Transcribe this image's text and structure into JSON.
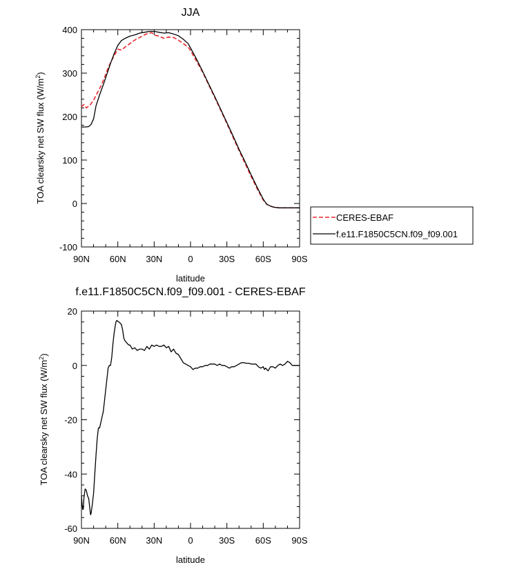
{
  "chart_data": [
    {
      "type": "line",
      "title": "JJA",
      "xlabel": "latitude",
      "ylabel": "TOA clearsky net SW flux (W/m²)",
      "ylabel_parts": {
        "main": "TOA clearsky net SW flux (W/m",
        "sup": "2",
        "end": ")"
      },
      "xlim": [
        90,
        -90
      ],
      "ylim": [
        -100,
        400
      ],
      "xticks": [
        90,
        60,
        30,
        0,
        -30,
        -60,
        -90
      ],
      "xtick_labels": [
        "90N",
        "60N",
        "30N",
        "0",
        "30S",
        "60S",
        "90S"
      ],
      "yticks": [
        -100,
        0,
        100,
        200,
        300,
        400
      ],
      "ytick_labels": [
        "-100",
        "0",
        "100",
        "200",
        "300",
        "400"
      ],
      "legend_position": "right",
      "series": [
        {
          "name": "CERES-EBAF",
          "color": "#e8282e",
          "dash": true,
          "x": [
            90,
            88,
            86,
            83,
            80,
            77,
            74,
            71,
            68,
            65,
            62,
            60,
            57,
            54,
            50,
            46,
            42,
            38,
            35,
            32,
            29,
            26,
            22,
            18,
            14,
            10,
            6,
            2,
            0,
            -5,
            -10,
            -15,
            -20,
            -25,
            -30,
            -35,
            -40,
            -45,
            -50,
            -55,
            -60,
            -63,
            -66,
            -68,
            -70,
            -73,
            -76,
            -80,
            -85,
            -90
          ],
          "y": [
            222,
            228,
            220,
            226,
            238,
            254,
            270,
            290,
            312,
            330,
            345,
            355,
            353,
            360,
            368,
            376,
            382,
            388,
            392,
            393,
            387,
            385,
            380,
            383,
            382,
            376,
            368,
            360,
            352,
            327,
            302,
            273,
            244,
            214,
            184,
            153,
            122,
            92,
            62,
            34,
            8,
            -2,
            -6,
            -8,
            -9,
            -10,
            -10,
            -10,
            -10,
            -10
          ]
        },
        {
          "name": "f.e11.F1850C5CN.f09_f09.001",
          "color": "#000000",
          "dash": false,
          "x": [
            90,
            87,
            84,
            82,
            80,
            78,
            75,
            72,
            69,
            66,
            63,
            60,
            57,
            54,
            50,
            46,
            42,
            38,
            34,
            30,
            26,
            22,
            18,
            14,
            10,
            6,
            2,
            0,
            -5,
            -10,
            -15,
            -20,
            -25,
            -30,
            -35,
            -40,
            -45,
            -50,
            -55,
            -60,
            -63,
            -66,
            -68,
            -70,
            -73,
            -76,
            -80,
            -85,
            -90
          ],
          "y": [
            176,
            176,
            177,
            182,
            195,
            225,
            250,
            273,
            298,
            322,
            345,
            364,
            375,
            380,
            385,
            388,
            392,
            394,
            396,
            396,
            394,
            392,
            393,
            390,
            386,
            378,
            368,
            358,
            332,
            304,
            275,
            246,
            216,
            186,
            156,
            125,
            96,
            66,
            37,
            10,
            -2,
            -6,
            -8,
            -9,
            -10,
            -10,
            -10,
            -10,
            -10
          ]
        }
      ]
    },
    {
      "type": "line",
      "title": "f.e11.F1850C5CN.f09_f09.001 - CERES-EBAF",
      "xlabel": "latitude",
      "ylabel": "TOA clearsky net SW flux (W/m²)",
      "ylabel_parts": {
        "main": "TOA clearsky net SW flux (W/m",
        "sup": "2",
        "end": ")"
      },
      "xlim": [
        90,
        -90
      ],
      "ylim": [
        -60,
        20
      ],
      "xticks": [
        90,
        60,
        30,
        0,
        -30,
        -60,
        -90
      ],
      "xtick_labels": [
        "90N",
        "60N",
        "30N",
        "0",
        "30S",
        "60S",
        "90S"
      ],
      "yticks": [
        -60,
        -40,
        -20,
        0,
        20
      ],
      "ytick_labels": [
        "-60",
        "-40",
        "-20",
        "0",
        "20"
      ],
      "series": [
        {
          "color": "#000000",
          "dash": false,
          "x": [
            90,
            89.5,
            89,
            88.5,
            88,
            87,
            86,
            85,
            84,
            83,
            82.5,
            82,
            81,
            80,
            79,
            78,
            77,
            76,
            75,
            74,
            73,
            72,
            71,
            70,
            69,
            68,
            67,
            66,
            65,
            64,
            63,
            62,
            61.5,
            61,
            60.5,
            60,
            59,
            58,
            57,
            56,
            55,
            54,
            53,
            52,
            51,
            50,
            48,
            46,
            44,
            42,
            40,
            38,
            36,
            34,
            32,
            30,
            28,
            26,
            24,
            22,
            20,
            18,
            16,
            14,
            12,
            10,
            8,
            6,
            4,
            2,
            0,
            -2,
            -4,
            -6,
            -8,
            -10,
            -12,
            -14,
            -16,
            -18,
            -20,
            -22,
            -24,
            -26,
            -28,
            -30,
            -32,
            -34,
            -36,
            -38,
            -40,
            -42,
            -44,
            -46,
            -48,
            -50,
            -52,
            -54,
            -56,
            -58,
            -60,
            -61,
            -62,
            -63,
            -64,
            -66,
            -68,
            -70,
            -72,
            -74,
            -76,
            -78,
            -80,
            -82,
            -84,
            -86,
            -88,
            -90
          ],
          "y": [
            -48,
            -51,
            -53,
            -53,
            -49,
            -45.5,
            -46,
            -48,
            -49,
            -53,
            -55,
            -54.5,
            -51,
            -47,
            -40,
            -33,
            -27,
            -23,
            -23,
            -21,
            -19,
            -17,
            -13,
            -9,
            -5,
            -1,
            0,
            0,
            3,
            8,
            12,
            15,
            16,
            16.5,
            16.5,
            16.2,
            16,
            15.5,
            15,
            13,
            10,
            9,
            8.5,
            8,
            7.5,
            7.5,
            6,
            6.5,
            5.5,
            6,
            6,
            5.5,
            7,
            6,
            7.5,
            7,
            7.5,
            7,
            7,
            7.5,
            6.5,
            7,
            5,
            6,
            4.5,
            4,
            2.5,
            1,
            0.5,
            0,
            -0.5,
            -1.5,
            -1,
            -1,
            -0.5,
            -0.5,
            0,
            0,
            0.5,
            0.5,
            0.5,
            0,
            0.5,
            0,
            0,
            -0.5,
            -1,
            -0.5,
            -0.5,
            0,
            0.5,
            1,
            1,
            0.8,
            0.8,
            0.5,
            0.5,
            0.5,
            -0.5,
            -1,
            -0.5,
            -1.5,
            -1,
            -1.5,
            -2,
            -0.5,
            -0.5,
            -1,
            0,
            0.5,
            0,
            0.5,
            1.5,
            1,
            0,
            0,
            0,
            0
          ]
        }
      ]
    }
  ]
}
